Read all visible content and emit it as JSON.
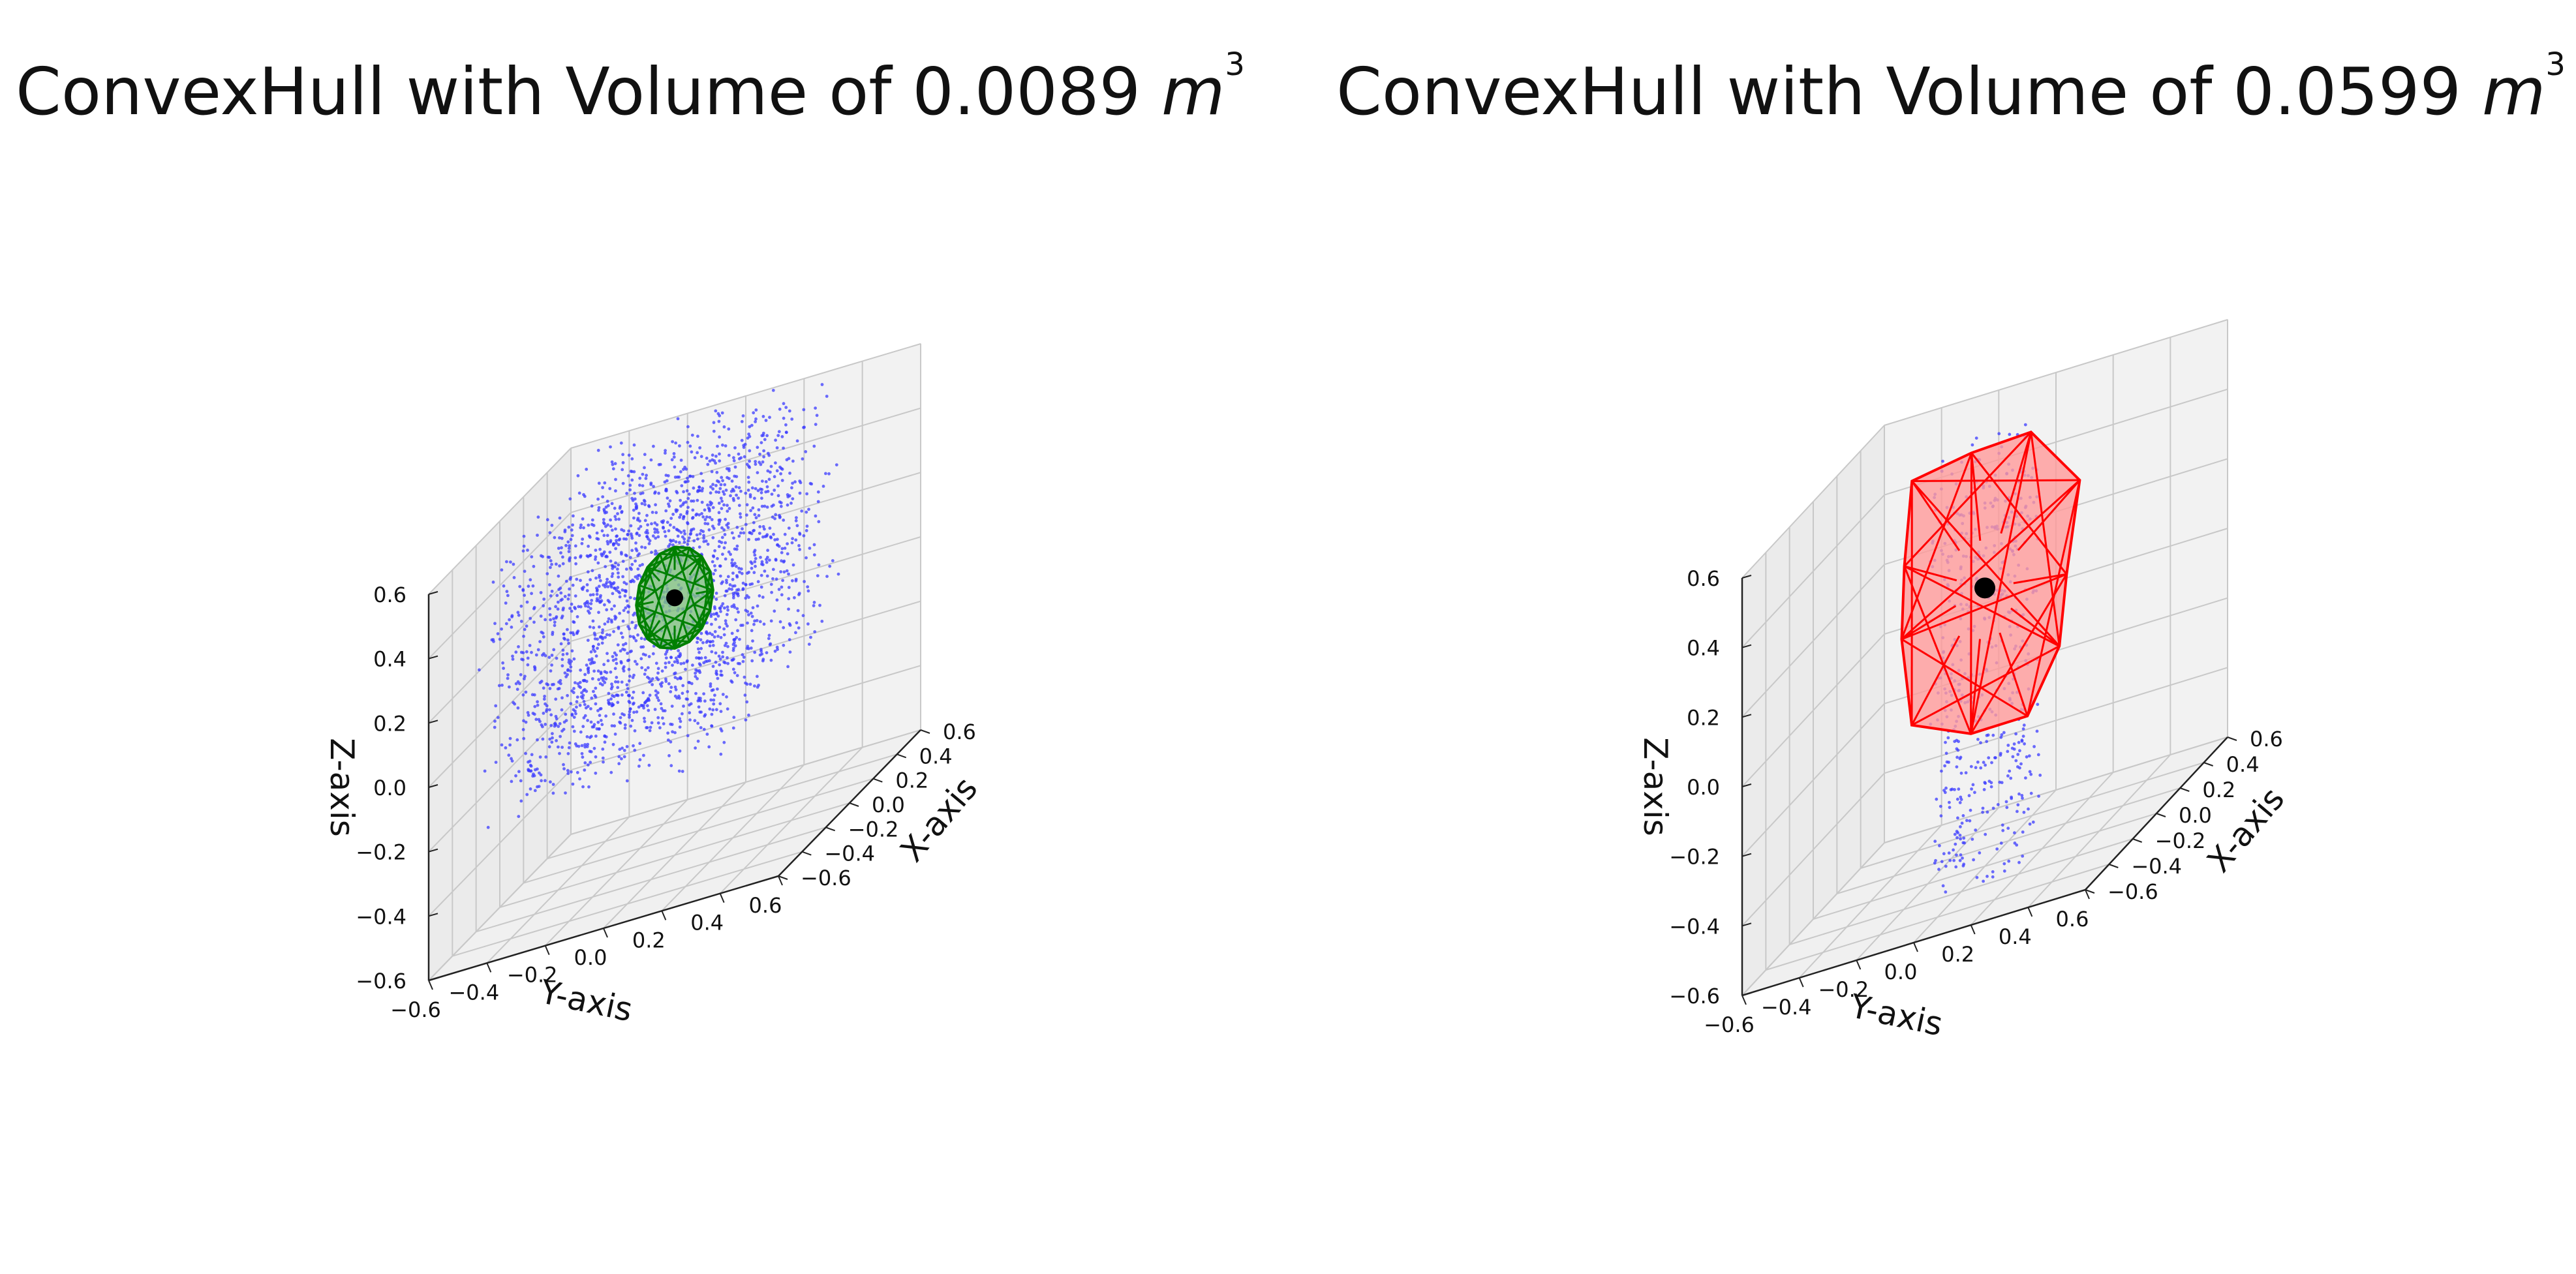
{
  "chart_data": [
    {
      "type": "scatter3d",
      "title_text": "ConvexHull with Volume of 0.0089",
      "title_unit": "m",
      "title_exp": "3",
      "xlabel": "X-axis",
      "ylabel": "Y-axis",
      "zlabel": "Z-axis",
      "xlim": [
        -0.6,
        0.6
      ],
      "ylim": [
        -0.6,
        0.6
      ],
      "zlim": [
        -0.6,
        0.6
      ],
      "x_ticks": [
        "−0.6",
        "−0.4",
        "−0.2",
        "0.0",
        "0.2",
        "0.4",
        "0.6"
      ],
      "y_ticks": [
        "−0.6",
        "−0.4",
        "−0.2",
        "0.0",
        "0.2",
        "0.4",
        "0.6"
      ],
      "z_ticks": [
        "−0.6",
        "−0.4",
        "−0.2",
        "0.0",
        "0.2",
        "0.4",
        "0.6"
      ],
      "grid": true,
      "points_color": "#3b3bff",
      "hull_color": "#008000",
      "hull_fill": "#7fbf7f",
      "center_point": [
        0.0,
        0.0,
        0.2
      ],
      "cloud_extent": {
        "x": [
          -0.55,
          0.55
        ],
        "y": [
          -0.45,
          0.35
        ],
        "z": [
          -0.2,
          0.6
        ]
      },
      "hull_radius": 0.15
    },
    {
      "type": "scatter3d",
      "title_text": "ConvexHull with Volume of 0.0599",
      "title_unit": "m",
      "title_exp": "3",
      "xlabel": "X-axis",
      "ylabel": "Y-axis",
      "zlabel": "Z-axis",
      "xlim": [
        -0.6,
        0.6
      ],
      "ylim": [
        -0.6,
        0.6
      ],
      "zlim": [
        -0.6,
        0.6
      ],
      "x_ticks": [
        "−0.6",
        "−0.4",
        "−0.2",
        "0.0",
        "0.2",
        "0.4",
        "0.6"
      ],
      "y_ticks": [
        "−0.6",
        "−0.4",
        "−0.2",
        "0.0",
        "0.2",
        "0.4",
        "0.6"
      ],
      "z_ticks": [
        "−0.6",
        "−0.4",
        "−0.2",
        "0.0",
        "0.2",
        "0.4",
        "0.6"
      ],
      "grid": true,
      "points_color": "#3b3bff",
      "hull_color": "#ff0000",
      "hull_fill": "#ff9a9a",
      "center_point": [
        0.0,
        0.0,
        0.2
      ],
      "cloud_extent": {
        "x": [
          -0.2,
          0.2
        ],
        "y": [
          -0.2,
          0.2
        ],
        "z": [
          -0.6,
          0.6
        ]
      },
      "hull_radius": 0.42
    }
  ]
}
